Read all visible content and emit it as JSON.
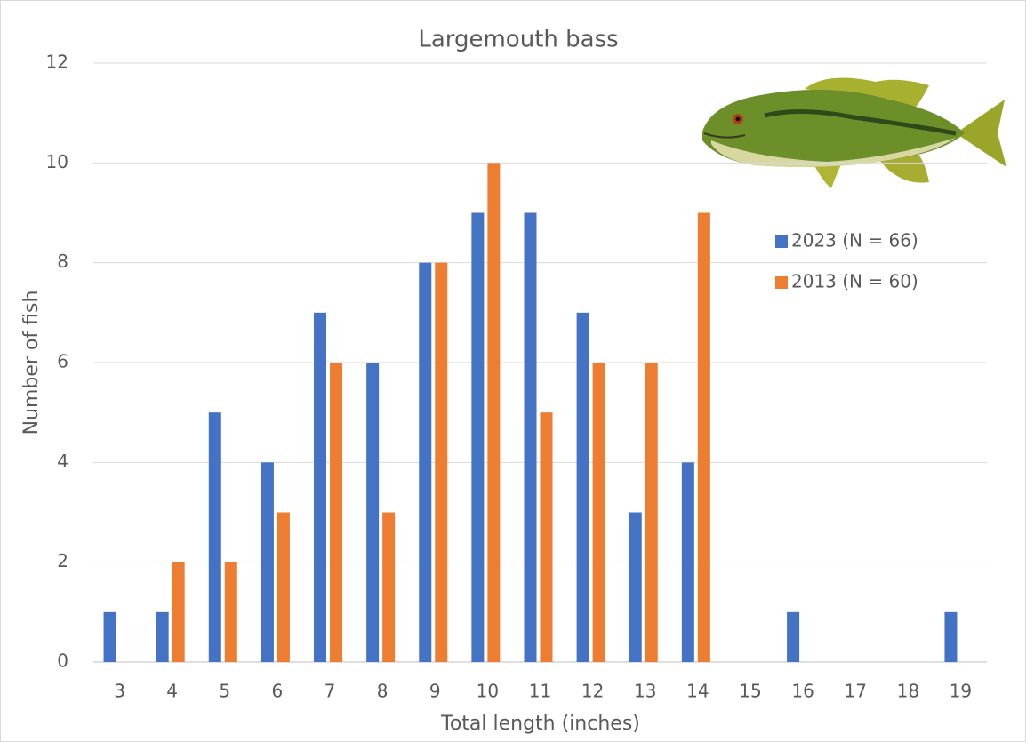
{
  "chart_data": {
    "type": "bar",
    "title": "Largemouth bass",
    "x_label": "Total length (inches)",
    "y_label": "Number of fish",
    "categories": [
      "3",
      "4",
      "5",
      "6",
      "7",
      "8",
      "9",
      "10",
      "11",
      "12",
      "13",
      "14",
      "15",
      "16",
      "17",
      "18",
      "19"
    ],
    "series": [
      {
        "name": "2023 (N = 66)",
        "color": "#4472c4",
        "values": [
          1,
          1,
          5,
          4,
          7,
          6,
          8,
          9,
          9,
          7,
          3,
          4,
          0,
          1,
          0,
          0,
          1
        ]
      },
      {
        "name": "2013 (N = 60)",
        "color": "#ed7d31",
        "values": [
          0,
          2,
          2,
          3,
          6,
          3,
          8,
          10,
          5,
          6,
          6,
          9,
          0,
          0,
          0,
          0,
          0
        ]
      }
    ],
    "ylim": [
      0,
      12
    ],
    "yticks": [
      0,
      2,
      4,
      6,
      8,
      10,
      12
    ],
    "grid": true
  }
}
